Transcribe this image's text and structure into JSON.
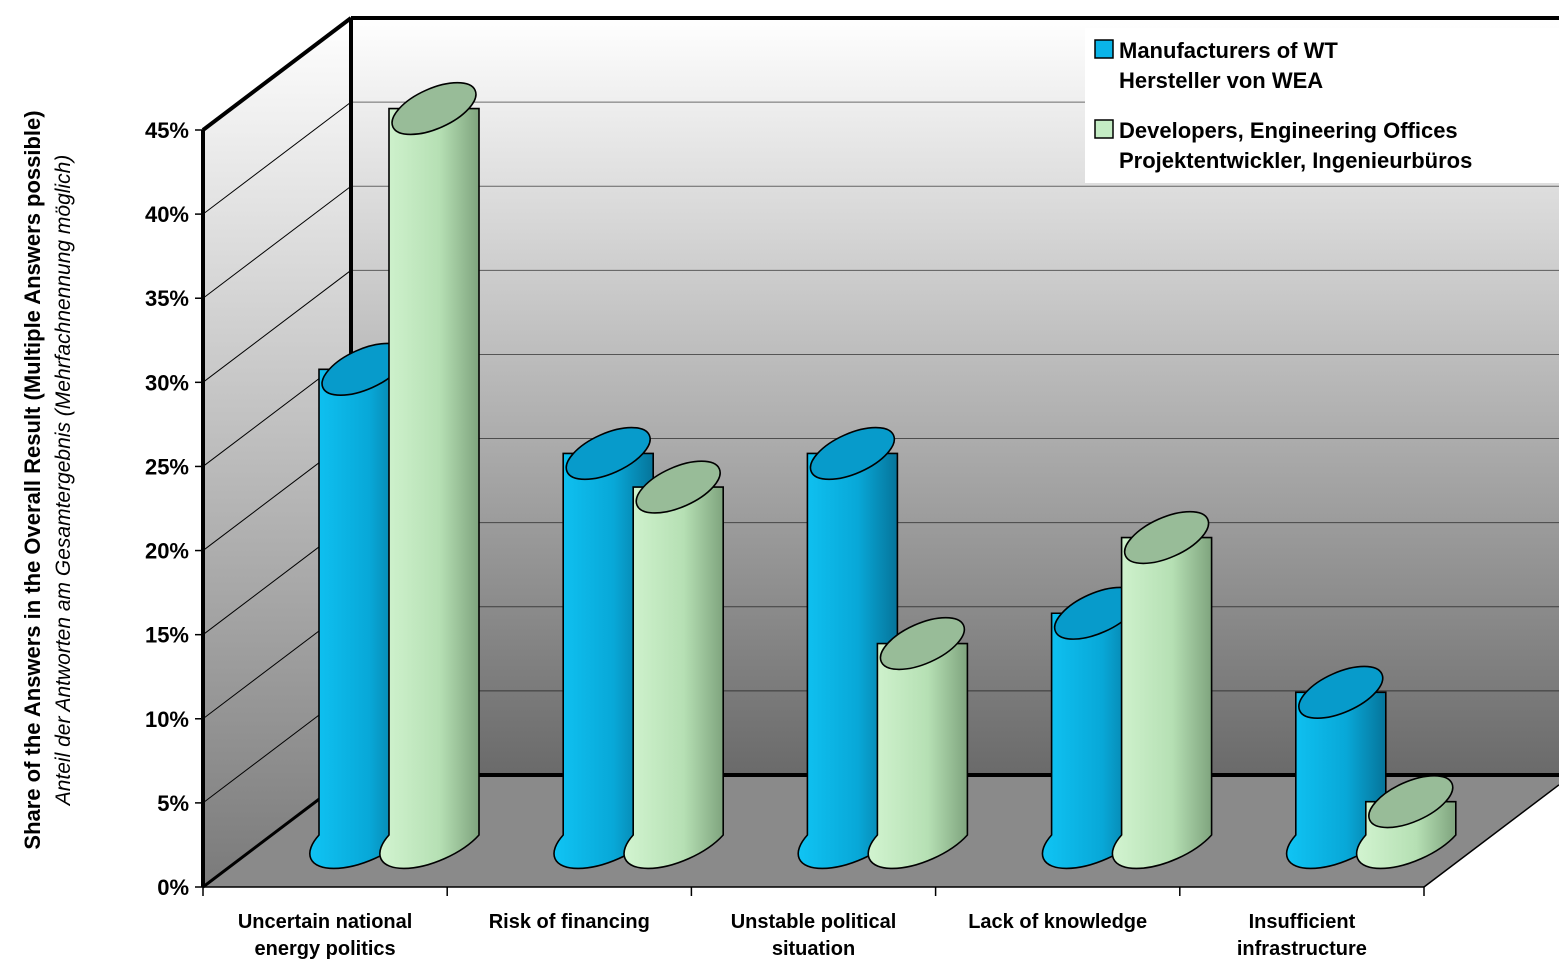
{
  "chart_data": {
    "type": "bar",
    "style": "3d-cylinder",
    "ylabel": "Share of the Answers in the Overall Result (Multiple Answers possible)",
    "ylabel_secondary": "Anteil der Antworten am Gesamtergebnis (Mehrfachnennung möglich)",
    "ylim": [
      0,
      45
    ],
    "yticks": [
      "0%",
      "5%",
      "10%",
      "15%",
      "20%",
      "25%",
      "30%",
      "35%",
      "40%",
      "45%"
    ],
    "grid": true,
    "legend_position": "top-right",
    "categories": [
      [
        "Uncertain national",
        "energy politics"
      ],
      [
        "Risk of financing"
      ],
      [
        "Unstable political",
        "situation"
      ],
      [
        "Lack of knowledge"
      ],
      [
        "Insufficient",
        "infrastructure"
      ]
    ],
    "series": [
      {
        "name": "Manufacturers of WT",
        "name_secondary": "Hersteller von WEA",
        "color": "#0ab4e8",
        "values": [
          30,
          25,
          25,
          15.5,
          10.8
        ]
      },
      {
        "name": "Developers, Engineering Offices",
        "name_secondary": "Projektentwickler, Ingenieurbüros",
        "color": "#c4ecc4",
        "values": [
          45.5,
          23,
          13.7,
          20,
          4.3
        ]
      }
    ]
  }
}
